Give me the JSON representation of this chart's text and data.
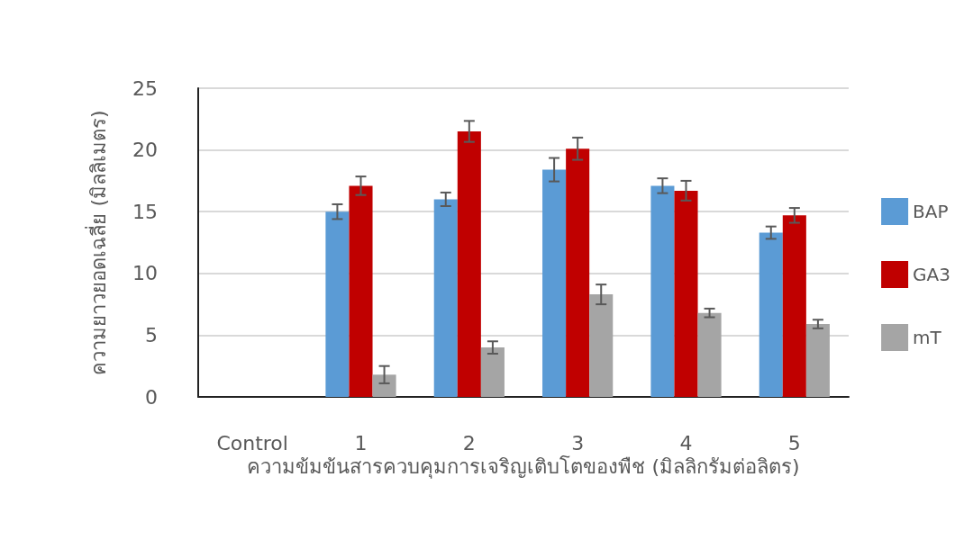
{
  "chart_data": {
    "type": "bar",
    "xlabel": "ความข้มข้นสารควบคุมการเจริญเติบโตของพืช (มิลลิกรัมต่อลิตร)",
    "ylabel": "ความยาวยอดเฉลี่ย (มิลลิเมตร)",
    "categories": [
      "Control",
      "1",
      "2",
      "3",
      "4",
      "5"
    ],
    "series": [
      {
        "name": "BAP",
        "color": "#5b9bd5",
        "values": [
          null,
          15.0,
          16.0,
          18.4,
          17.1,
          13.3
        ],
        "errors": [
          null,
          0.6,
          0.55,
          0.95,
          0.6,
          0.5
        ]
      },
      {
        "name": "GA3",
        "color": "#c00000",
        "values": [
          null,
          17.1,
          21.5,
          20.1,
          16.7,
          14.7
        ],
        "errors": [
          null,
          0.75,
          0.85,
          0.9,
          0.8,
          0.6
        ]
      },
      {
        "name": "mT",
        "color": "#a5a5a5",
        "values": [
          null,
          1.8,
          4.0,
          8.3,
          6.8,
          5.9
        ],
        "errors": [
          null,
          0.7,
          0.5,
          0.8,
          0.35,
          0.35
        ]
      }
    ],
    "ylim": [
      0,
      25
    ],
    "yticks": [
      0,
      5,
      10,
      15,
      20,
      25
    ],
    "grid": "y",
    "legend": "right"
  }
}
